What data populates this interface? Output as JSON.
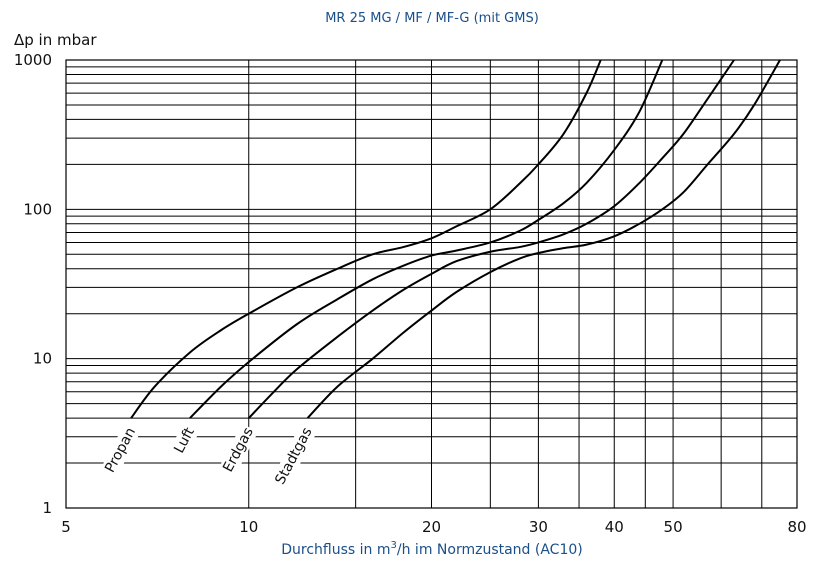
{
  "chart_data": {
    "type": "line",
    "title": "MR 25 MG / MF / MF-G (mit GMS)",
    "xlabel_parts": {
      "before": "Durchfluss in m",
      "superscript": "3",
      "after": "/h im Normzustand (AC10)"
    },
    "ylabel": "Δp in mbar",
    "xscale": "log",
    "yscale": "log",
    "xlim": [
      5,
      80
    ],
    "ylim": [
      1,
      1000
    ],
    "xticks": [
      5,
      10,
      20,
      30,
      40,
      50,
      80
    ],
    "xtick_labels": [
      "5",
      "10",
      "20",
      "30",
      "40",
      "50",
      "80"
    ],
    "ytick_labels": [
      {
        "value": 1,
        "label": "1"
      },
      {
        "value": 10,
        "label": "10"
      },
      {
        "value": 100,
        "label": "100"
      },
      {
        "value": 1000,
        "label": "1000"
      }
    ],
    "x_major_grid": [
      10,
      15,
      20,
      25,
      30,
      35,
      40,
      45,
      50,
      60,
      70
    ],
    "grid": true,
    "series": [
      {
        "name": "Propan",
        "x": [
          6.4,
          7.0,
          8.0,
          9.0,
          10.0,
          12.0,
          14.0,
          16.0,
          18.0,
          20.0,
          22.0,
          25.0,
          28.0,
          30.0,
          33.0,
          36.0,
          38.0
        ],
        "y": [
          4,
          6.5,
          11,
          15.5,
          20,
          30,
          40,
          50,
          56,
          64,
          77,
          100,
          150,
          200,
          320,
          600,
          1000
        ]
      },
      {
        "name": "Luft",
        "x": [
          8.0,
          9.0,
          10.0,
          12.0,
          14.0,
          16.0,
          18.0,
          20.0,
          22.0,
          25.0,
          28.0,
          30.0,
          33.0,
          36.0,
          40.0,
          44.0,
          48.0
        ],
        "y": [
          4,
          6.5,
          9.5,
          17,
          25,
          34,
          42,
          49,
          53,
          60,
          72,
          85,
          110,
          150,
          250,
          450,
          1000
        ]
      },
      {
        "name": "Erdgas",
        "x": [
          10.0,
          11.0,
          12.0,
          14.0,
          16.0,
          18.0,
          20.0,
          22.0,
          25.0,
          28.0,
          30.0,
          33.0,
          36.0,
          40.0,
          44.0,
          48.0,
          52.0,
          57.0,
          63.0
        ],
        "y": [
          4,
          6,
          8.5,
          14,
          21,
          29,
          37,
          45,
          52,
          56,
          60,
          68,
          80,
          105,
          150,
          220,
          320,
          550,
          1000
        ]
      },
      {
        "name": "Stadtgas",
        "x": [
          12.5,
          14.0,
          16.0,
          18.0,
          20.0,
          22.0,
          25.0,
          28.0,
          30.0,
          33.0,
          36.0,
          40.0,
          44.0,
          48.0,
          52.0,
          57.0,
          63.0,
          68.0,
          75.0
        ],
        "y": [
          4,
          6.5,
          10,
          15,
          21,
          28,
          38,
          47,
          51,
          55,
          58,
          66,
          80,
          100,
          130,
          200,
          320,
          500,
          1000
        ]
      }
    ]
  }
}
